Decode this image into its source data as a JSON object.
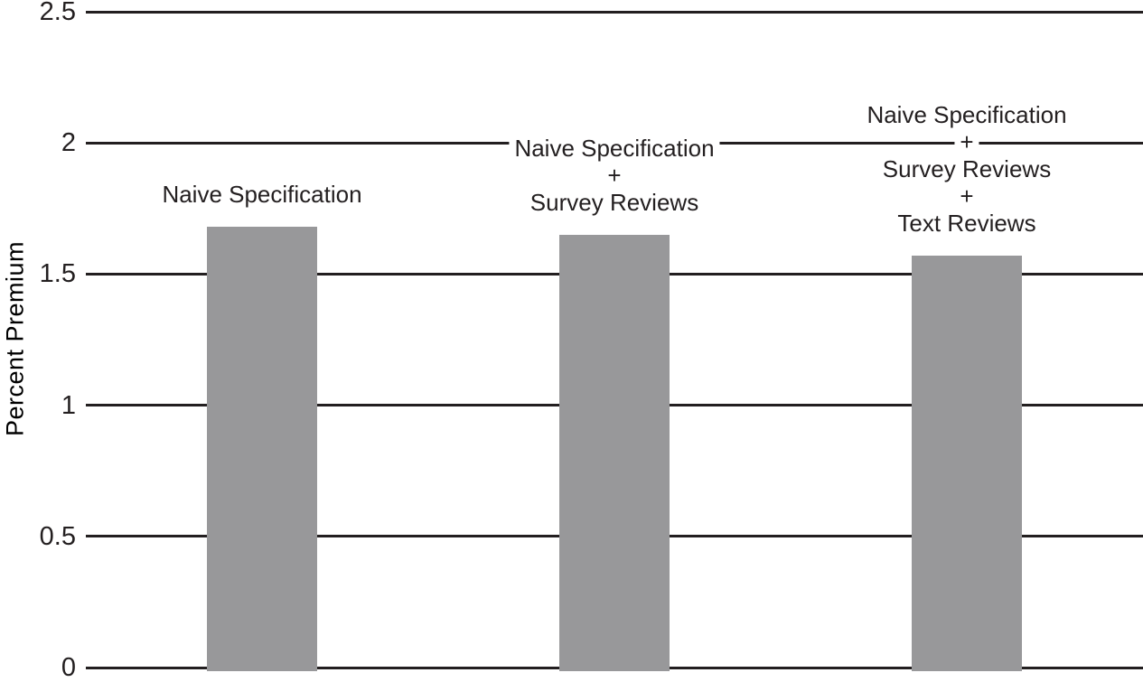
{
  "chart_data": {
    "type": "bar",
    "title": "",
    "ylabel": "Percent Premium",
    "xlabel": "",
    "ylim": [
      0,
      2.5
    ],
    "grid": true,
    "legend": "none",
    "yticks": [
      {
        "value": 0,
        "label": "0"
      },
      {
        "value": 0.5,
        "label": "0.5"
      },
      {
        "value": 1,
        "label": "1"
      },
      {
        "value": 1.5,
        "label": "1.5"
      },
      {
        "value": 2,
        "label": "2"
      },
      {
        "value": 2.5,
        "label": "2.5"
      }
    ],
    "categories": [
      {
        "label": "Naive Specification",
        "lines": [
          "Naive Specification"
        ]
      },
      {
        "label": "Naive Specification + Survey Reviews",
        "lines": [
          "Naive Specification",
          "+",
          "Survey Reviews"
        ]
      },
      {
        "label": "Naive Specification + Survey Reviews + Text Reviews",
        "lines": [
          "Naive Specification",
          "+",
          "Survey Reviews",
          "+",
          "Text Reviews"
        ]
      }
    ],
    "values": [
      1.68,
      1.65,
      1.57
    ],
    "colors": {
      "bar": "#98989a",
      "line": "#231f20",
      "text": "#231f20",
      "background": "#ffffff"
    }
  }
}
